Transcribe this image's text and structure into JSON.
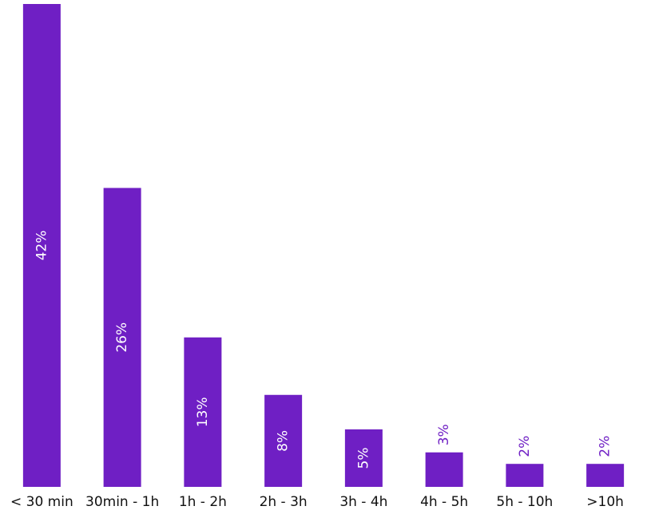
{
  "chart_data": {
    "type": "bar",
    "color": "#6f1fc4",
    "categories": [
      "< 30 min",
      "30min - 1h",
      "1h - 2h",
      "2h - 3h",
      "3h - 4h",
      "4h - 5h",
      "5h - 10h",
      ">10h"
    ],
    "values": [
      42,
      26,
      13,
      8,
      5,
      3,
      2,
      2
    ],
    "value_labels": [
      "42%",
      "26%",
      "13%",
      "8%",
      "5%",
      "3%",
      "2%",
      "2%"
    ]
  }
}
